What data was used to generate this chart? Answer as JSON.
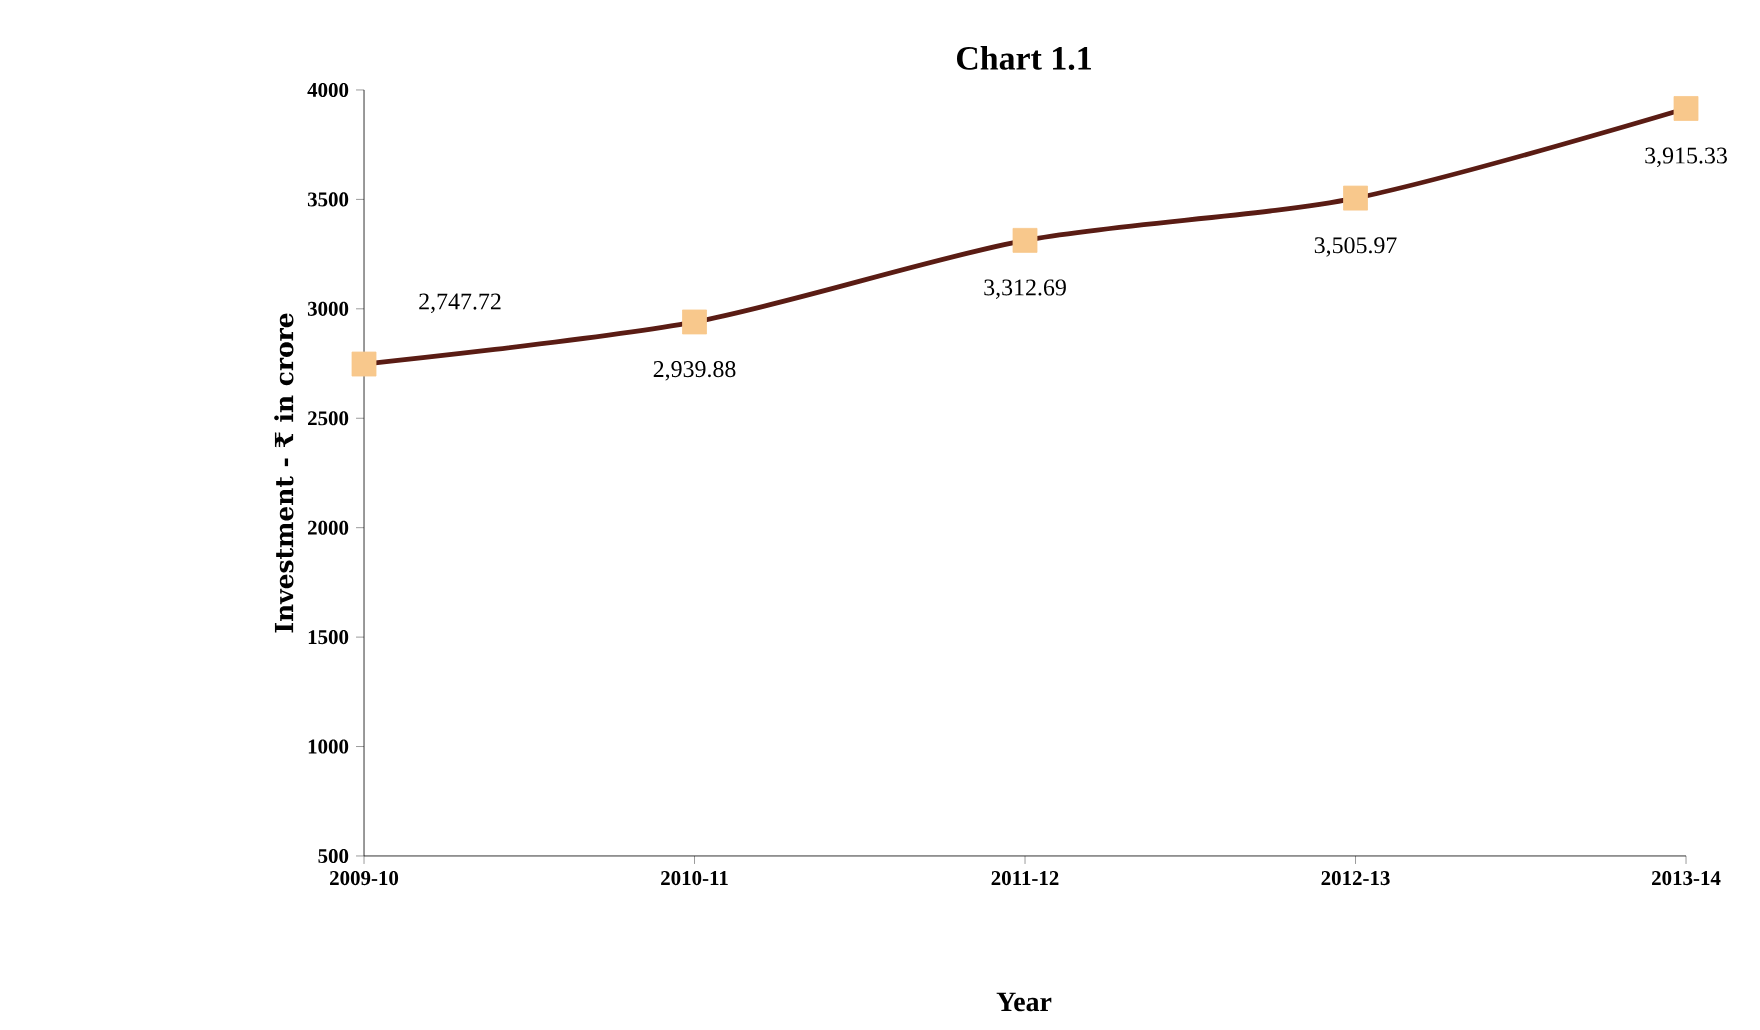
{
  "chart_data": {
    "type": "line",
    "title": "Chart 1.1",
    "xlabel": "Year",
    "ylabel": "Investment - ₹ in crore",
    "categories": [
      "2009-10",
      "2010-11",
      "2011-12",
      "2012-13",
      "2013-14"
    ],
    "series": [
      {
        "color": "#5a1c14",
        "values": [
          2747.72,
          2939.88,
          3312.69,
          3505.97,
          3915.33
        ],
        "value_labels": [
          "2,747.72",
          "2,939.88",
          "3,312.69",
          "3,505.97",
          "3,915.33"
        ],
        "colors": [
          "#f8c88c",
          "#f8c88c",
          "#f8c88c",
          "#f8c88c",
          "#f8c88c"
        ]
      }
    ],
    "marker": "square",
    "line_style": "solid",
    "ylim": [
      500,
      4000
    ],
    "yticks": [
      500,
      1000,
      1500,
      2000,
      2500,
      3000,
      3500,
      4000
    ],
    "grid": false
  }
}
